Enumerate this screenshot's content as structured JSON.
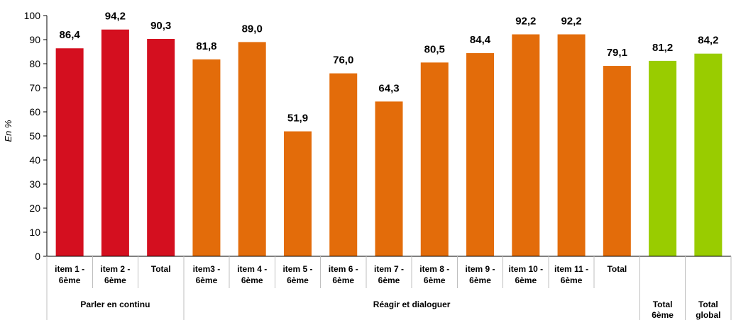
{
  "chart_data": {
    "type": "bar",
    "ylabel": "En %",
    "ylim": [
      0,
      100
    ],
    "yticks": [
      0,
      10,
      20,
      30,
      40,
      50,
      60,
      70,
      80,
      90,
      100
    ],
    "grid": false,
    "legend": "none",
    "groups": [
      {
        "label": "Parler en continu",
        "span": 3
      },
      {
        "label": "Réagir et dialoguer",
        "span": 10
      },
      {
        "label": "",
        "span": 1
      },
      {
        "label": "",
        "span": 1
      }
    ],
    "categories": [
      [
        "item 1 -",
        "6ème"
      ],
      [
        "item 2 -",
        "6ème"
      ],
      [
        "Total"
      ],
      [
        "item3 -",
        "6ème"
      ],
      [
        "item 4 -",
        "6ème"
      ],
      [
        "item 5 -",
        "6ème"
      ],
      [
        "item 6 -",
        "6ème"
      ],
      [
        "item 7 -",
        "6ème"
      ],
      [
        "item 8 -",
        "6ème"
      ],
      [
        "item 9 -",
        "6ème"
      ],
      [
        "item 10 -",
        "6ème"
      ],
      [
        "item 11 -",
        "6ème"
      ],
      [
        "Total"
      ],
      [
        "Total",
        "6ème"
      ],
      [
        "Total",
        "global"
      ]
    ],
    "values": [
      86.4,
      94.2,
      90.3,
      81.8,
      89.0,
      51.9,
      76.0,
      64.3,
      80.5,
      84.4,
      92.2,
      92.2,
      79.1,
      81.2,
      84.2
    ],
    "value_labels": [
      "86,4",
      "94,2",
      "90,3",
      "81,8",
      "89,0",
      "51,9",
      "76,0",
      "64,3",
      "80,5",
      "84,4",
      "92,2",
      "92,2",
      "79,1",
      "81,2",
      "84,2"
    ],
    "colors": [
      "#d40f1f",
      "#d40f1f",
      "#d40f1f",
      "#e36c0a",
      "#e36c0a",
      "#e36c0a",
      "#e36c0a",
      "#e36c0a",
      "#e36c0a",
      "#e36c0a",
      "#e36c0a",
      "#e36c0a",
      "#e36c0a",
      "#99cc00",
      "#99cc00"
    ]
  }
}
